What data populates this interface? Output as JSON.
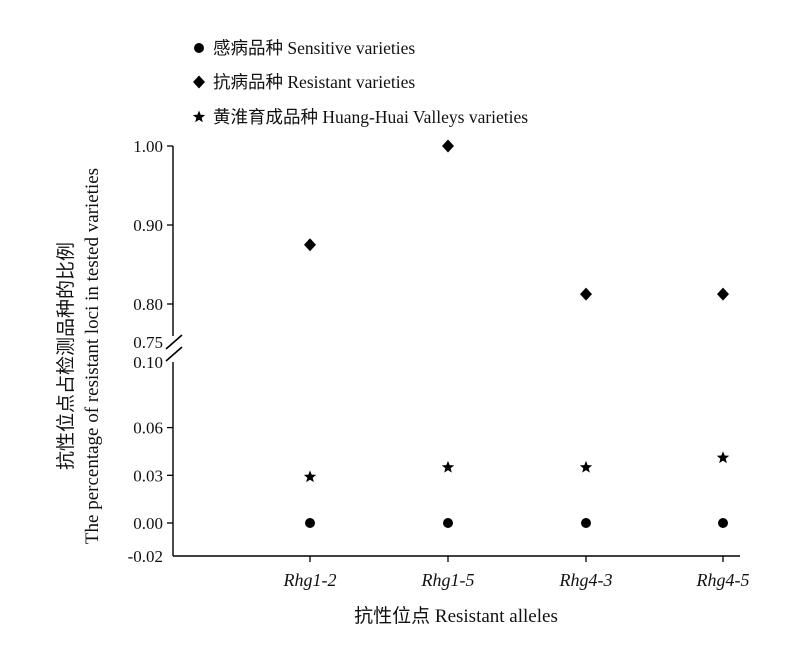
{
  "chart_data": {
    "type": "scatter",
    "categories": [
      "Rhg1-2",
      "Rhg1-5",
      "Rhg4-3",
      "Rhg4-5"
    ],
    "series": [
      {
        "name": "感病品种 Sensitive varieties",
        "marker": "circle",
        "values": [
          0.0,
          0.0,
          0.0,
          0.0
        ]
      },
      {
        "name": "抗病品种 Resistant varieties",
        "marker": "diamond",
        "values": [
          0.875,
          1.0,
          0.8125,
          0.8125
        ]
      },
      {
        "name": "黄淮育成品种 Huang-Huai Valleys varieties",
        "marker": "star",
        "values": [
          0.029,
          0.035,
          0.035,
          0.041
        ]
      }
    ],
    "xlabel": "抗性位点 Resistant alleles",
    "ylabel": [
      "抗性位点占检测品种的比例",
      "The percentage of resistant loci in tested varieties"
    ],
    "y_axis_break": true,
    "y_upper_segment": {
      "range": [
        0.75,
        1.0
      ],
      "ticks": [
        "0.75",
        "0.80",
        "0.90",
        "1.00"
      ]
    },
    "y_lower_segment": {
      "range": [
        -0.02,
        0.1
      ],
      "ticks": [
        "-0.02",
        "0.00",
        "0.03",
        "0.06",
        "0.10"
      ]
    },
    "legend_position": "top",
    "grid": false
  }
}
